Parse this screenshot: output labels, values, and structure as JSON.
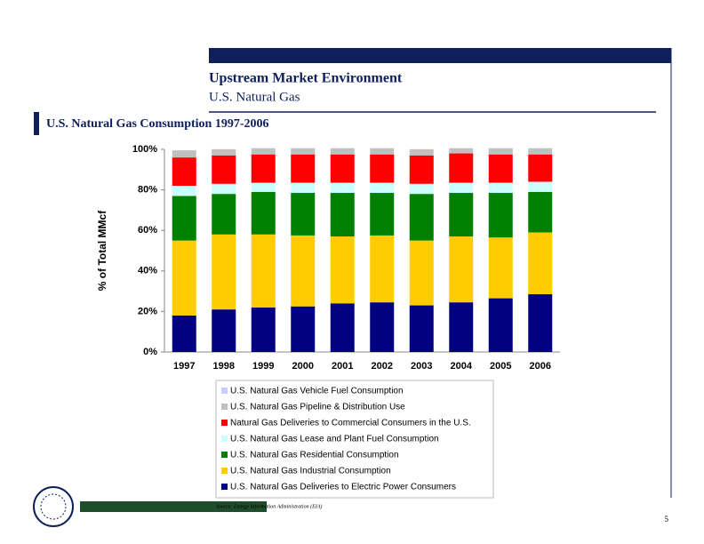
{
  "page": {
    "header_title": "Upstream Market Environment",
    "header_subtitle": "U.S. Natural Gas",
    "section_title": "U.S. Natural Gas Consumption 1997-2006",
    "source": "Source:  Energy Information Administration (EIA)",
    "page_number": "5"
  },
  "chart_data": {
    "type": "stacked-bar",
    "y_label": "% of Total MMcf",
    "categories": [
      "1997",
      "1998",
      "1999",
      "2000",
      "2001",
      "2002",
      "2003",
      "2004",
      "2005",
      "2006"
    ],
    "ylim": [
      0,
      100
    ],
    "yticks": [
      {
        "value": 0,
        "label": "0%"
      },
      {
        "value": 20,
        "label": "20%"
      },
      {
        "value": 40,
        "label": "40%"
      },
      {
        "value": 60,
        "label": "60%"
      },
      {
        "value": 80,
        "label": "80%"
      },
      {
        "value": 100,
        "label": "100%"
      }
    ],
    "grid": false,
    "series": [
      {
        "name": "U.S. Natural Gas Deliveries to Electric Power Consumers",
        "color": "#000080",
        "values": [
          18,
          21,
          22,
          22.5,
          24,
          24.5,
          23,
          24.5,
          26.5,
          28.5
        ]
      },
      {
        "name": "U.S. Natural Gas Industrial Consumption",
        "color": "#ffcc00",
        "values": [
          37,
          37,
          36,
          35,
          33,
          33,
          32,
          32.5,
          30,
          30.5
        ]
      },
      {
        "name": "U.S. Natural Gas Residential Consumption",
        "color": "#008000",
        "values": [
          22,
          20,
          21,
          21,
          21.5,
          21,
          23,
          21.5,
          22,
          20
        ]
      },
      {
        "name": "U.S. Natural Gas Lease and Plant Fuel Consumption",
        "color": "#ccffff",
        "values": [
          5,
          5,
          4.5,
          5,
          5,
          5,
          5,
          5,
          5,
          5
        ]
      },
      {
        "name": "Natural Gas Deliveries to Commercial Consumers in the U.S.",
        "color": "#ff0000",
        "values": [
          14,
          14,
          14,
          14,
          14,
          14,
          14,
          14.5,
          14,
          13.5
        ]
      },
      {
        "name": "U.S. Natural Gas Pipeline & Distribution Use",
        "color": "#c0c0c0",
        "values": [
          3.5,
          3,
          3,
          3,
          3,
          3,
          3,
          2.5,
          3,
          3
        ]
      },
      {
        "name": "U.S. Natural Gas Vehicle Fuel Consumption",
        "color": "#ccccff",
        "values": [
          0.1,
          0.1,
          0.1,
          0.1,
          0.1,
          0.1,
          0.1,
          0.1,
          0.1,
          0.1
        ]
      }
    ]
  }
}
